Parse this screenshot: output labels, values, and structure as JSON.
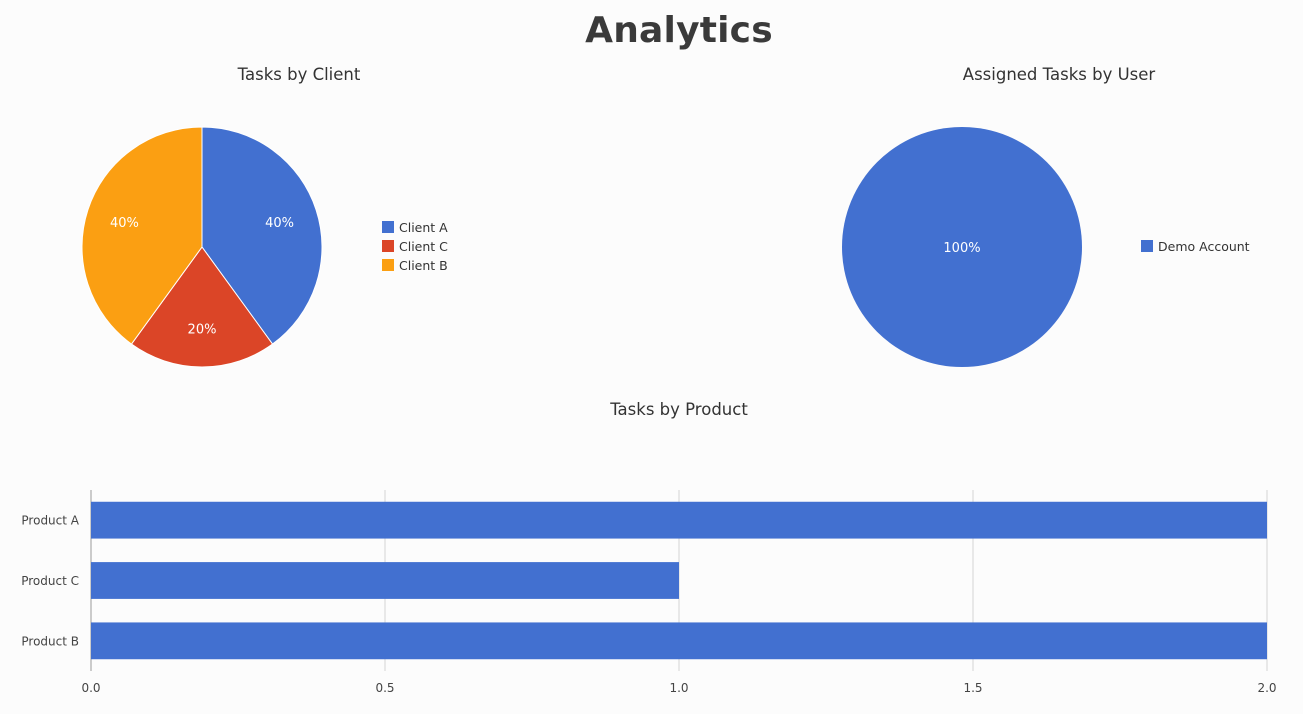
{
  "page": {
    "title": "Analytics"
  },
  "chart_data": [
    {
      "type": "pie",
      "title": "Tasks by Client",
      "slices": [
        {
          "label": "Client A",
          "percent": 40,
          "color": "#4270d0"
        },
        {
          "label": "Client C",
          "percent": 20,
          "color": "#db4527"
        },
        {
          "label": "Client B",
          "percent": 40,
          "color": "#fb9f12"
        }
      ],
      "slice_labels": [
        "40%",
        "20%",
        "40%"
      ],
      "legend": "right"
    },
    {
      "type": "pie",
      "title": "Assigned Tasks by User",
      "slices": [
        {
          "label": "Demo Account",
          "percent": 100,
          "color": "#4270d0"
        }
      ],
      "slice_labels": [
        "100%"
      ],
      "legend": "right"
    },
    {
      "type": "bar",
      "orientation": "horizontal",
      "title": "Tasks by Product",
      "categories": [
        "Product A",
        "Product C",
        "Product B"
      ],
      "values": [
        2,
        1,
        2
      ],
      "xlim": [
        0,
        2
      ],
      "x_ticks": [
        "0.0",
        "0.5",
        "1.0",
        "1.5",
        "2.0"
      ],
      "grid": true,
      "color": "#4270d0"
    }
  ]
}
